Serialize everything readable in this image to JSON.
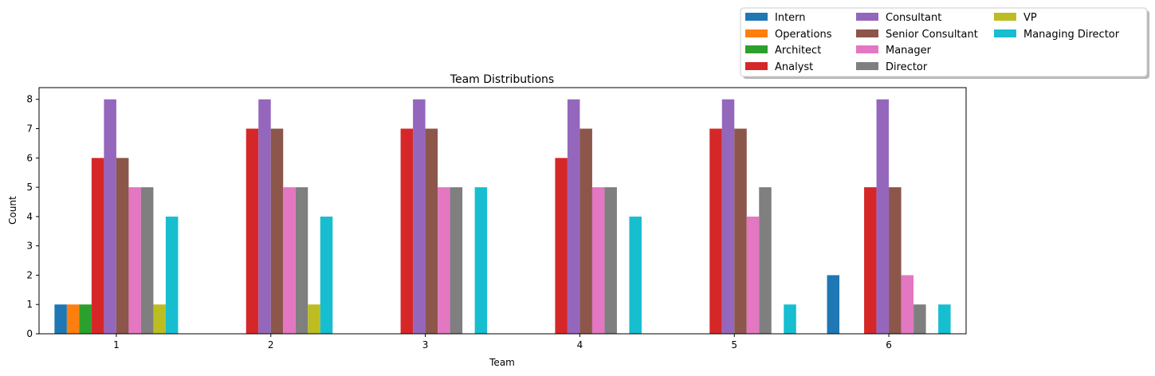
{
  "chart_data": {
    "type": "bar",
    "title": "Team Distributions",
    "xlabel": "Team",
    "ylabel": "Count",
    "categories": [
      "1",
      "2",
      "3",
      "4",
      "5",
      "6"
    ],
    "ylim": [
      0,
      8.4
    ],
    "yticks": [
      0,
      1,
      2,
      3,
      4,
      5,
      6,
      7,
      8
    ],
    "grid": false,
    "legend_position": "top-right, outside plot",
    "legend_columns": 3,
    "series": [
      {
        "name": "Intern",
        "color": "#1f77b4",
        "values": [
          1,
          0,
          0,
          0,
          0,
          2
        ]
      },
      {
        "name": "Operations",
        "color": "#ff7f0e",
        "values": [
          1,
          0,
          0,
          0,
          0,
          0
        ]
      },
      {
        "name": "Architect",
        "color": "#2ca02c",
        "values": [
          1,
          0,
          0,
          0,
          0,
          0
        ]
      },
      {
        "name": "Analyst",
        "color": "#d62728",
        "values": [
          6,
          7,
          7,
          6,
          7,
          5
        ]
      },
      {
        "name": "Consultant",
        "color": "#9467bd",
        "values": [
          8,
          8,
          8,
          8,
          8,
          8
        ]
      },
      {
        "name": "Senior Consultant",
        "color": "#8c564b",
        "values": [
          6,
          7,
          7,
          7,
          7,
          5
        ]
      },
      {
        "name": "Manager",
        "color": "#e377c2",
        "values": [
          5,
          5,
          5,
          5,
          4,
          2
        ]
      },
      {
        "name": "Director",
        "color": "#7f7f7f",
        "values": [
          5,
          5,
          5,
          5,
          5,
          1
        ]
      },
      {
        "name": "VP",
        "color": "#bcbd22",
        "values": [
          1,
          1,
          0,
          0,
          0,
          0
        ]
      },
      {
        "name": "Managing Director",
        "color": "#17becf",
        "values": [
          4,
          4,
          5,
          4,
          1,
          1
        ]
      }
    ]
  }
}
